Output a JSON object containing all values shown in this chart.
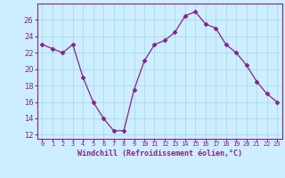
{
  "x": [
    0,
    1,
    2,
    3,
    4,
    5,
    6,
    7,
    8,
    9,
    10,
    11,
    12,
    13,
    14,
    15,
    16,
    17,
    18,
    19,
    20,
    21,
    22,
    23
  ],
  "y": [
    23,
    22.5,
    22,
    23,
    19,
    16,
    14,
    12.5,
    12.5,
    17.5,
    21,
    23,
    23.5,
    24.5,
    26.5,
    27,
    25.5,
    25,
    23,
    22,
    20.5,
    18.5,
    17,
    16
  ],
  "line_color": "#882288",
  "marker": "D",
  "marker_size": 2.5,
  "bg_color": "#cceeff",
  "grid_color": "#aadddd",
  "xlabel": "Windchill (Refroidissement éolien,°C)",
  "xlabel_color": "#882288",
  "tick_color": "#882288",
  "ylim": [
    11.5,
    28
  ],
  "yticks": [
    12,
    14,
    16,
    18,
    20,
    22,
    24,
    26
  ],
  "xlim": [
    -0.5,
    23.5
  ],
  "xticks": [
    0,
    1,
    2,
    3,
    4,
    5,
    6,
    7,
    8,
    9,
    10,
    11,
    12,
    13,
    14,
    15,
    16,
    17,
    18,
    19,
    20,
    21,
    22,
    23
  ],
  "xtick_labels": [
    "0",
    "1",
    "2",
    "3",
    "4",
    "5",
    "6",
    "7",
    "8",
    "9",
    "10",
    "11",
    "12",
    "13",
    "14",
    "15",
    "16",
    "17",
    "18",
    "19",
    "20",
    "21",
    "22",
    "23"
  ],
  "spine_color": "#882288",
  "xlabel_fontsize": 6.0,
  "xtick_fontsize": 5.0,
  "ytick_fontsize": 6.0
}
